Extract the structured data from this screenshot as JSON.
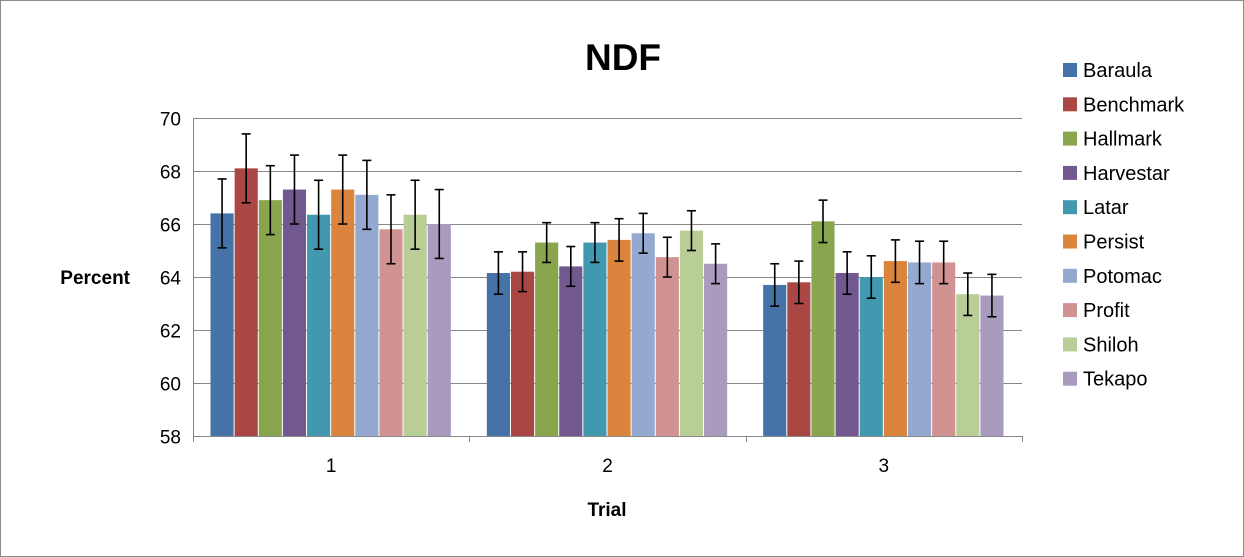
{
  "chart_data": {
    "type": "bar",
    "title": "NDF",
    "xlabel": "Trial",
    "ylabel": "Percent",
    "categories": [
      "1",
      "2",
      "3"
    ],
    "ylim": [
      58,
      70
    ],
    "yticks": [
      58,
      60,
      62,
      64,
      66,
      68,
      70
    ],
    "grid": true,
    "legend_position": "right",
    "series": [
      {
        "name": "Baraula",
        "color": "#4572A7",
        "values": [
          66.4,
          64.15,
          63.7
        ],
        "errors": [
          1.3,
          0.8,
          0.8
        ]
      },
      {
        "name": "Benchmark",
        "color": "#AA4643",
        "values": [
          68.1,
          64.2,
          63.8
        ],
        "errors": [
          1.3,
          0.75,
          0.8
        ]
      },
      {
        "name": "Hallmark",
        "color": "#89A54E",
        "values": [
          66.9,
          65.3,
          66.1
        ],
        "errors": [
          1.3,
          0.75,
          0.8
        ]
      },
      {
        "name": "Harvestar",
        "color": "#71588F",
        "values": [
          67.3,
          64.4,
          64.15
        ],
        "errors": [
          1.3,
          0.75,
          0.8
        ]
      },
      {
        "name": "Latar",
        "color": "#4198AF",
        "values": [
          66.35,
          65.3,
          64.0
        ],
        "errors": [
          1.3,
          0.75,
          0.8
        ]
      },
      {
        "name": "Persist",
        "color": "#DB843D",
        "values": [
          67.3,
          65.4,
          64.6
        ],
        "errors": [
          1.3,
          0.8,
          0.8
        ]
      },
      {
        "name": "Potomac",
        "color": "#93A9CF",
        "values": [
          67.1,
          65.65,
          64.55
        ],
        "errors": [
          1.3,
          0.75,
          0.8
        ]
      },
      {
        "name": "Profit",
        "color": "#D19392",
        "values": [
          65.8,
          64.75,
          64.55
        ],
        "errors": [
          1.3,
          0.75,
          0.8
        ]
      },
      {
        "name": "Shiloh",
        "color": "#B9CD96",
        "values": [
          66.35,
          65.75,
          63.35
        ],
        "errors": [
          1.3,
          0.75,
          0.8
        ]
      },
      {
        "name": "Tekapo",
        "color": "#A99BBD",
        "values": [
          66.0,
          64.5,
          63.3
        ],
        "errors": [
          1.3,
          0.75,
          0.8
        ]
      }
    ]
  }
}
